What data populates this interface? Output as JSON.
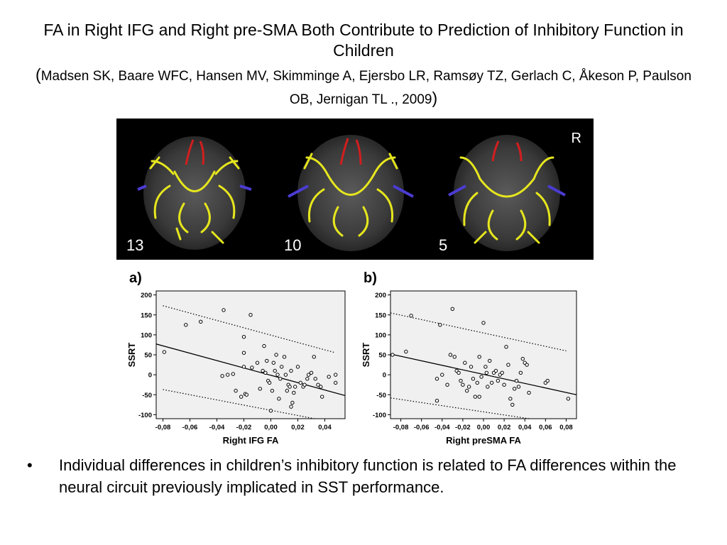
{
  "slide": {
    "title": "FA in Right IFG and Right pre-SMA Both Contribute to Prediction of Inhibitory Function in Children",
    "citation_open": "(",
    "citation": "Madsen SK, Baare WFC, Hansen MV, Skimminge A, Ejersbo LR, Ramsøy TZ, Gerlach C, Åkeson P, Paulson OB, Jernigan TL ., 2009",
    "citation_close": ")",
    "bullet_symbol": "•",
    "bullet": "Individual differences in children’s inhibitory function is related to FA differences within the neural circuit previously implicated in SST performance."
  },
  "brain_panel": {
    "orientation_label": "R",
    "slice_labels": [
      "13",
      "10",
      "5"
    ],
    "colors": {
      "background": "#000000",
      "tract_main": "#e6e61e",
      "tract_ifg": "#4b3cd2",
      "tract_presma": "#d21e1e"
    }
  },
  "chart_data": [
    {
      "type": "scatter",
      "panel_label": "a)",
      "xlabel": "Right IFG FA",
      "ylabel": "SSRT",
      "xlim": [
        -0.085,
        0.055
      ],
      "ylim": [
        -110,
        210
      ],
      "xticks": [
        -0.08,
        -0.06,
        -0.04,
        -0.02,
        0.0,
        0.02,
        0.04
      ],
      "xtick_labels": [
        "-0,08",
        "-0,06",
        "-0,04",
        "-0,02",
        "0,00",
        "0,02",
        "0,04"
      ],
      "yticks": [
        -100,
        -50,
        0,
        50,
        100,
        150,
        200
      ],
      "ytick_labels": [
        "-100",
        "-50",
        "0",
        "50",
        "100",
        "150",
        "200"
      ],
      "background": "#f0f0f0",
      "fit_line": {
        "x": [
          -0.085,
          0.055
        ],
        "y": [
          77,
          -52
        ]
      },
      "ci_upper": {
        "x": [
          -0.08,
          0.047
        ],
        "y": [
          173,
          56
        ]
      },
      "ci_lower": {
        "x": [
          -0.08,
          0.04
        ],
        "y": [
          -37,
          -115
        ]
      },
      "points": {
        "x": [
          -0.079,
          -0.063,
          -0.052,
          -0.035,
          -0.032,
          -0.028,
          -0.036,
          -0.026,
          -0.022,
          -0.019,
          -0.018,
          -0.015,
          -0.02,
          -0.02,
          -0.02,
          -0.014,
          -0.01,
          -0.008,
          -0.006,
          -0.004,
          -0.003,
          -0.002,
          -0.001,
          0.0,
          0.001,
          0.002,
          0.003,
          0.004,
          0.005,
          0.006,
          0.007,
          0.008,
          0.01,
          0.011,
          0.012,
          0.013,
          0.014,
          0.015,
          0.016,
          0.017,
          0.018,
          0.02,
          0.022,
          0.024,
          0.025,
          0.027,
          0.028,
          0.03,
          0.032,
          0.033,
          0.035,
          0.037,
          0.038,
          0.043,
          0.048,
          0.048,
          0.015,
          -0.005
        ],
        "y": [
          57,
          125,
          133,
          162,
          0,
          2,
          -3,
          -40,
          -55,
          -48,
          -50,
          150,
          95,
          55,
          20,
          18,
          30,
          -35,
          10,
          5,
          35,
          -15,
          -20,
          -90,
          -40,
          30,
          10,
          50,
          0,
          -60,
          -10,
          20,
          45,
          0,
          -40,
          -25,
          -30,
          10,
          -70,
          -45,
          -30,
          20,
          -20,
          -30,
          -25,
          -10,
          0,
          5,
          45,
          -10,
          -25,
          -30,
          -55,
          -5,
          0,
          -20,
          -80,
          72
        ]
      }
    },
    {
      "type": "scatter",
      "panel_label": "b)",
      "xlabel": "Right preSMA FA",
      "ylabel": "SSRT",
      "xlim": [
        -0.09,
        0.09
      ],
      "ylim": [
        -110,
        210
      ],
      "xticks": [
        -0.08,
        -0.06,
        -0.04,
        -0.02,
        0.0,
        0.02,
        0.04,
        0.06,
        0.08
      ],
      "xtick_labels": [
        "-0,08",
        "-0,06",
        "-0,04",
        "-0,02",
        "0,00",
        "0,02",
        "0,04",
        "0,06",
        "0,08"
      ],
      "yticks": [
        -100,
        -50,
        0,
        50,
        100,
        150,
        200
      ],
      "ytick_labels": [
        "-100",
        "-50",
        "0",
        "50",
        "100",
        "150",
        "200"
      ],
      "background": "#f0f0f0",
      "fit_line": {
        "x": [
          -0.09,
          0.09
        ],
        "y": [
          52,
          -50
        ]
      },
      "ci_upper": {
        "x": [
          -0.09,
          0.08
        ],
        "y": [
          155,
          60
        ]
      },
      "ci_lower": {
        "x": [
          -0.09,
          0.07
        ],
        "y": [
          -58,
          -120
        ]
      },
      "points": {
        "x": [
          -0.088,
          -0.075,
          -0.07,
          -0.045,
          -0.042,
          -0.04,
          -0.035,
          -0.032,
          -0.03,
          -0.028,
          -0.026,
          -0.024,
          -0.022,
          -0.02,
          -0.018,
          -0.016,
          -0.014,
          -0.012,
          -0.01,
          -0.008,
          -0.006,
          -0.004,
          -0.002,
          0.0,
          0.002,
          0.004,
          0.006,
          0.008,
          0.01,
          0.012,
          0.014,
          0.016,
          0.018,
          0.02,
          0.022,
          0.024,
          0.026,
          0.028,
          0.03,
          0.032,
          0.034,
          0.036,
          0.038,
          0.04,
          0.042,
          0.044,
          0.06,
          0.062,
          0.082,
          -0.045,
          -0.004,
          0.003
        ],
        "y": [
          50,
          58,
          148,
          -65,
          125,
          0,
          -25,
          50,
          165,
          45,
          10,
          5,
          -15,
          -25,
          30,
          -40,
          -30,
          20,
          -10,
          -55,
          -20,
          45,
          -5,
          130,
          20,
          -30,
          35,
          -20,
          5,
          10,
          -15,
          0,
          5,
          -25,
          70,
          25,
          -60,
          -75,
          -35,
          -15,
          -30,
          5,
          40,
          30,
          25,
          -45,
          -20,
          -15,
          -60,
          -10,
          -55,
          5
        ]
      }
    }
  ]
}
